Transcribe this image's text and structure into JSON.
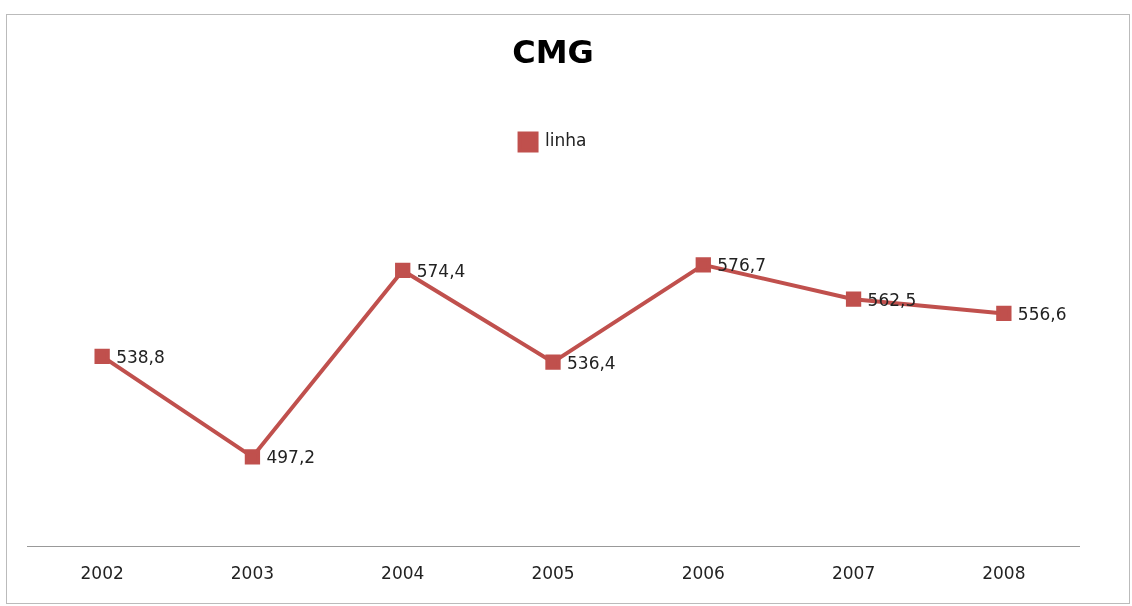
{
  "chart_data": {
    "type": "line",
    "title": "CMG",
    "categories": [
      "2002",
      "2003",
      "2004",
      "2005",
      "2006",
      "2007",
      "2008"
    ],
    "series": [
      {
        "name": "linha",
        "color": "#c0504d",
        "values": [
          538.8,
          497.2,
          574.4,
          536.4,
          576.7,
          562.5,
          556.6
        ],
        "value_labels": [
          "538,8",
          "497,2",
          "574,4",
          "536,4",
          "576,7",
          "562,5",
          "556,6"
        ]
      }
    ],
    "legend": "top",
    "marker": "square",
    "line_style": "solid",
    "grid": false,
    "tick_labels": "x"
  }
}
